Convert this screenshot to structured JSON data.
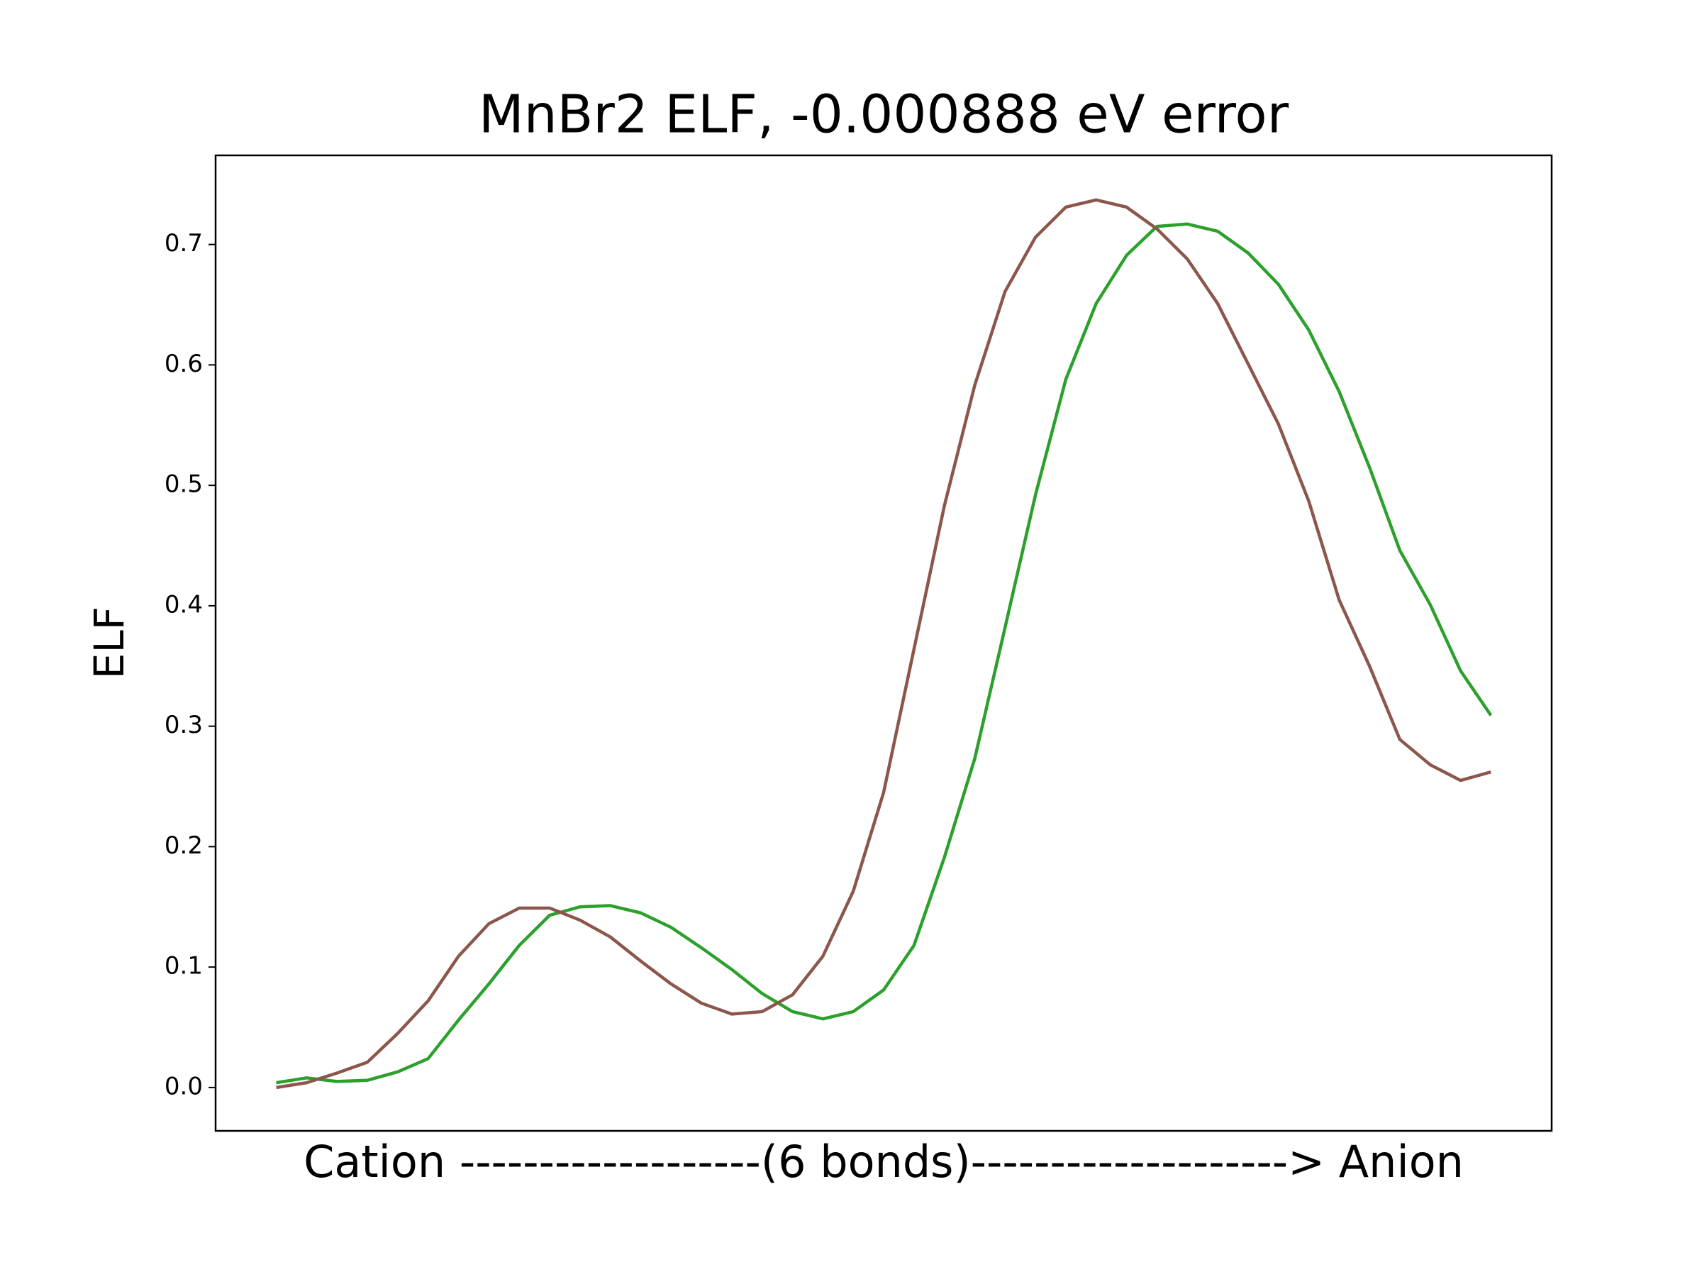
{
  "chart_data": {
    "type": "line",
    "title": "MnBr2 ELF, -0.000888 eV error",
    "xlabel": "Cation -------------------(6 bonds)--------------------> Anion",
    "ylabel": "ELF",
    "ylim": [
      -0.036,
      0.774
    ],
    "yticks": [
      {
        "value": 0,
        "label": "0.0"
      },
      0.1,
      0.2,
      0.3,
      0.4,
      0.5,
      0.6,
      0.7
    ],
    "grid": false,
    "series": [
      {
        "color": "#2ca02c",
        "values": [
          0.004,
          0.008,
          0.005,
          0.006,
          0.013,
          0.024,
          0.056,
          0.086,
          0.118,
          0.143,
          0.15,
          0.151,
          0.145,
          0.133,
          0.116,
          0.098,
          0.078,
          0.063,
          0.057,
          0.063,
          0.081,
          0.118,
          0.191,
          0.273,
          0.382,
          0.492,
          0.588,
          0.651,
          0.691,
          0.715,
          0.717,
          0.711,
          0.693,
          0.667,
          0.629,
          0.578,
          0.515,
          0.446,
          0.401,
          0.346,
          0.309
        ]
      },
      {
        "color": "#8c564b",
        "values": [
          0.0,
          0.004,
          0.012,
          0.021,
          0.045,
          0.072,
          0.109,
          0.136,
          0.149,
          0.149,
          0.139,
          0.125,
          0.105,
          0.086,
          0.07,
          0.061,
          0.063,
          0.077,
          0.109,
          0.163,
          0.245,
          0.364,
          0.483,
          0.583,
          0.661,
          0.706,
          0.731,
          0.737,
          0.731,
          0.713,
          0.688,
          0.651,
          0.601,
          0.551,
          0.487,
          0.405,
          0.35,
          0.289,
          0.268,
          0.255,
          0.262
        ]
      }
    ]
  }
}
